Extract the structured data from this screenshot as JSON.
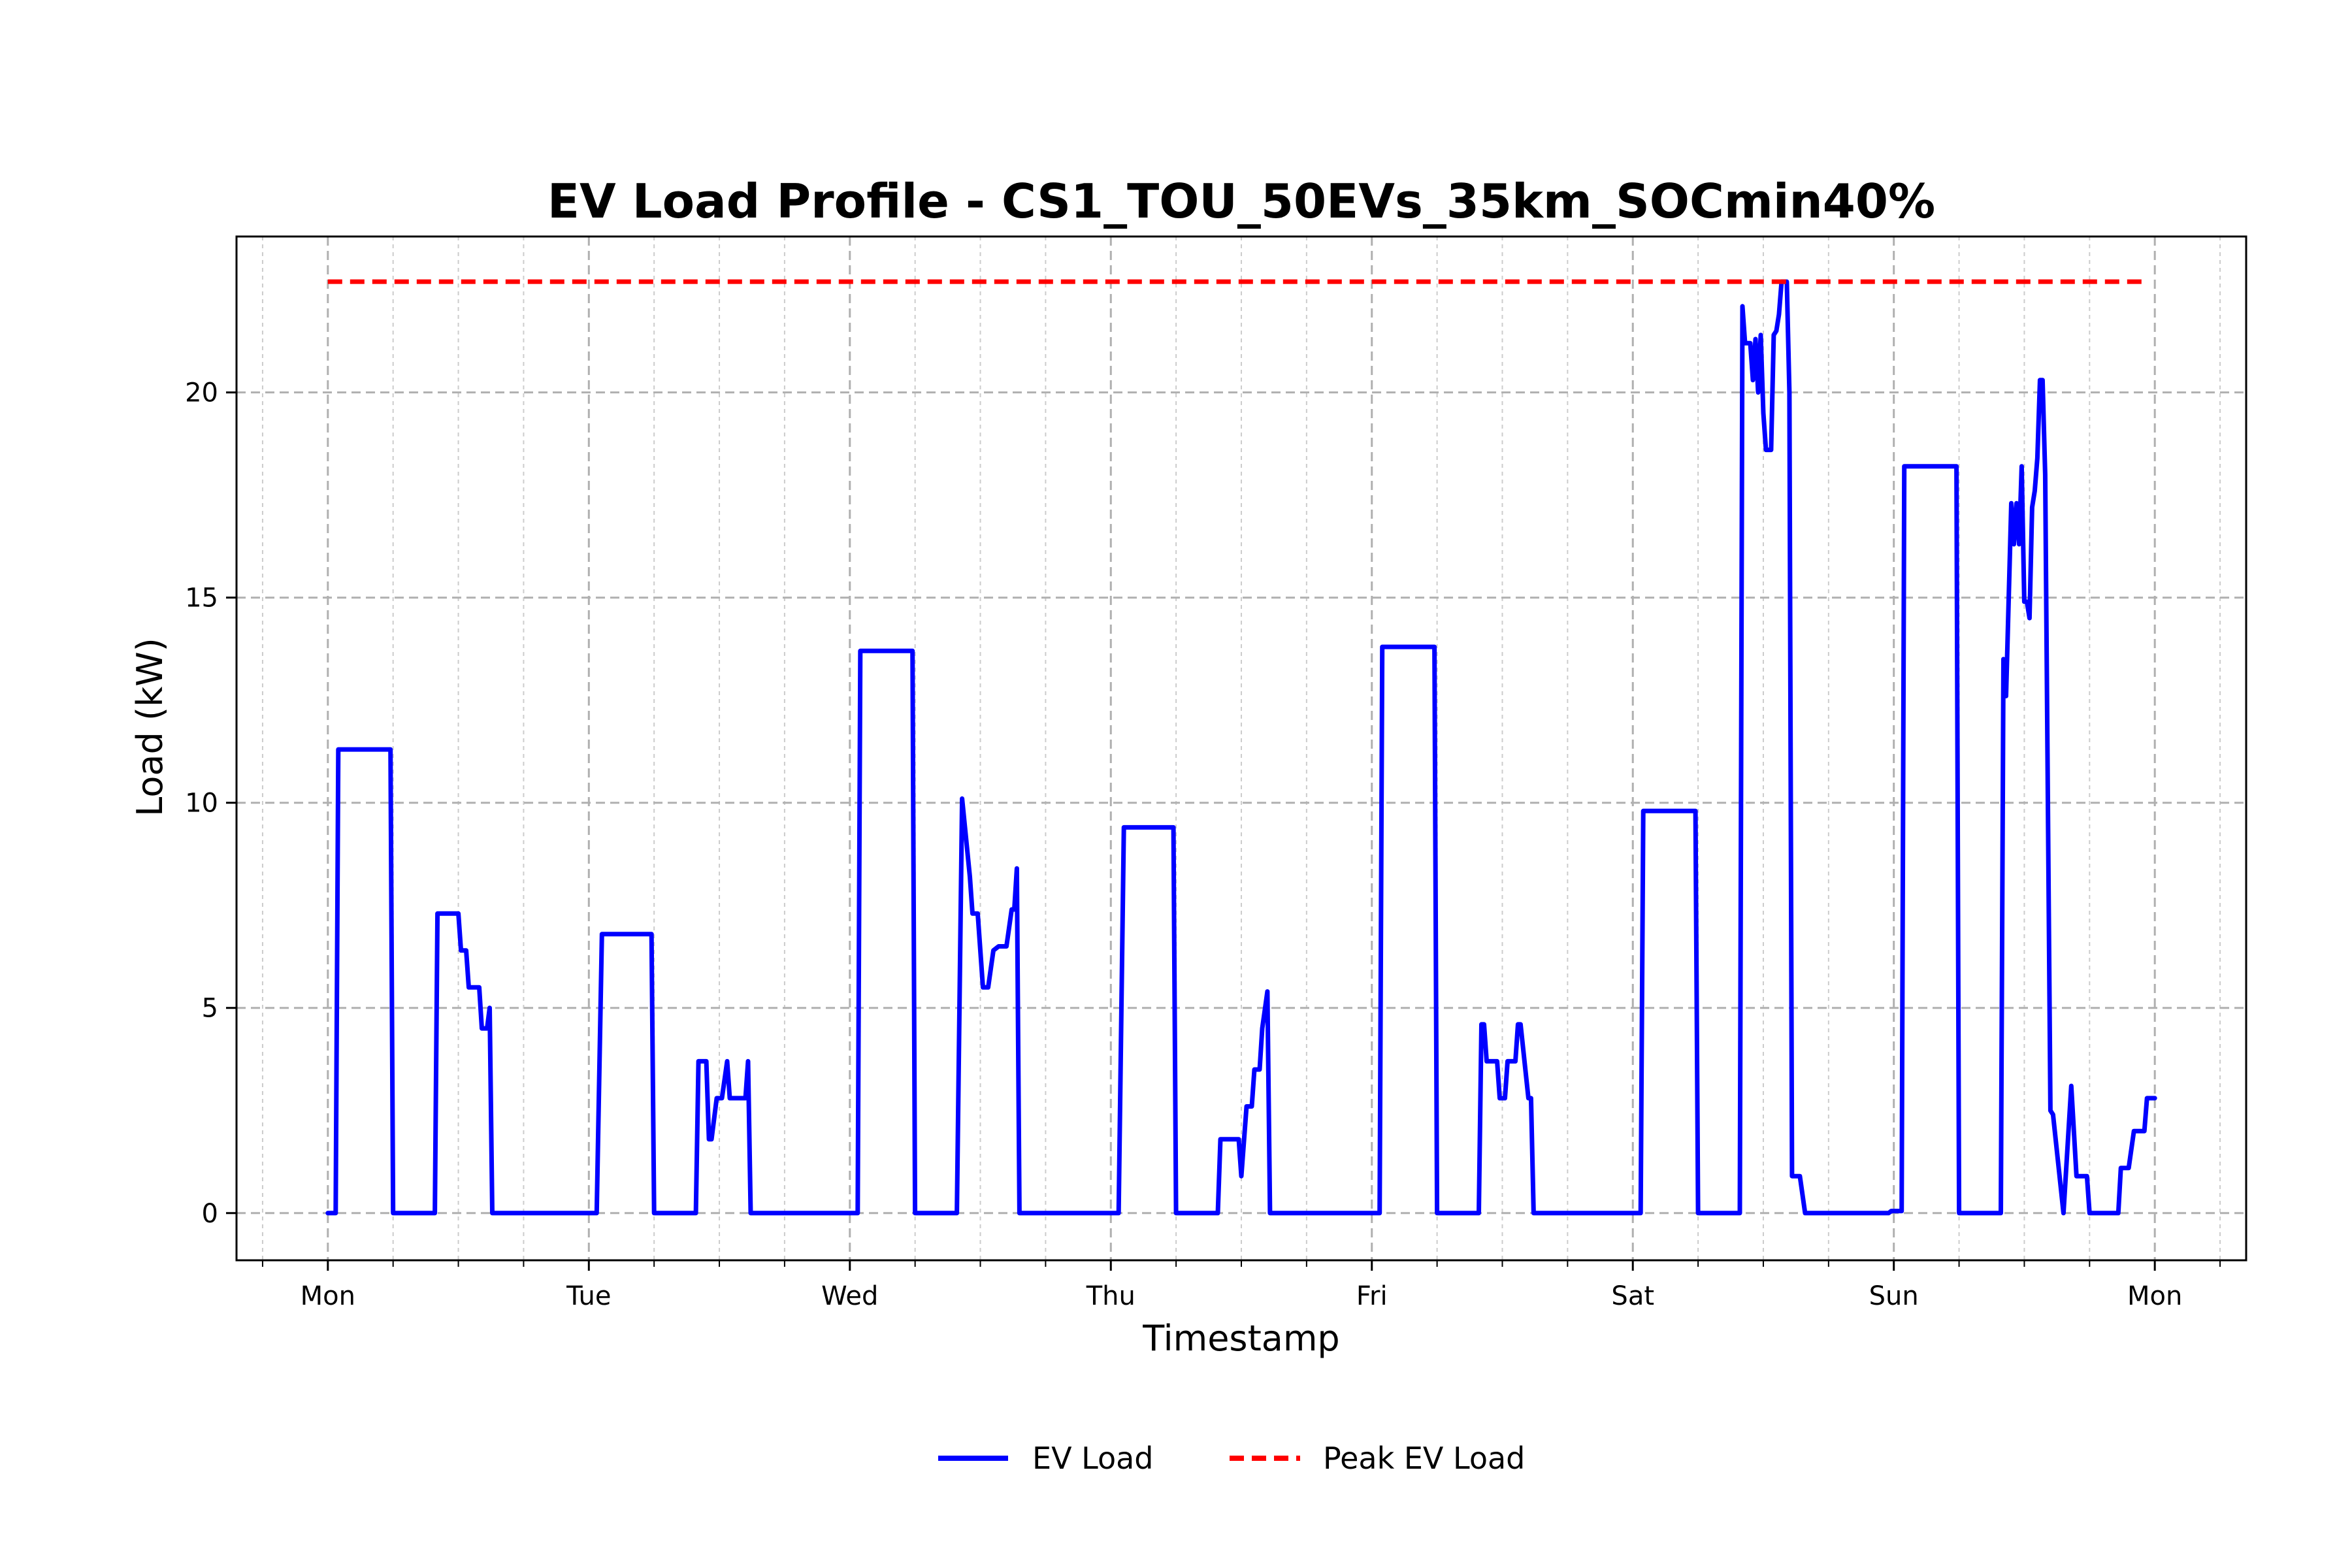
{
  "chart_data": {
    "type": "line",
    "title": "EV Load Profile - CS1_TOU_50EVs_35km_SOCmin40%",
    "xlabel": "Timestamp",
    "ylabel": "Load (kW)",
    "x_unit": "days from Monday 00:00",
    "xlim": [
      -0.35,
      7.35
    ],
    "ylim": [
      -1.15,
      23.8
    ],
    "x_ticks": [
      {
        "value": 0,
        "label": "Mon"
      },
      {
        "value": 1,
        "label": "Tue"
      },
      {
        "value": 2,
        "label": "Wed"
      },
      {
        "value": 3,
        "label": "Thu"
      },
      {
        "value": 4,
        "label": "Fri"
      },
      {
        "value": 5,
        "label": "Sat"
      },
      {
        "value": 6,
        "label": "Sun"
      },
      {
        "value": 7,
        "label": "Mon"
      }
    ],
    "y_ticks": [
      {
        "value": 0,
        "label": "0"
      },
      {
        "value": 5,
        "label": "5"
      },
      {
        "value": 10,
        "label": "10"
      },
      {
        "value": 15,
        "label": "15"
      },
      {
        "value": 20,
        "label": "20"
      }
    ],
    "grid": true,
    "legend_position": "bottom-center",
    "series": [
      {
        "name": "EV Load",
        "color": "#0000ff",
        "style": "solid",
        "points": [
          [
            0,
            0
          ],
          [
            0.03,
            0
          ],
          [
            0.04,
            11.3
          ],
          [
            0.24,
            11.3
          ],
          [
            0.25,
            0
          ],
          [
            0.41,
            0
          ],
          [
            0.42,
            7.3
          ],
          [
            0.5,
            7.3
          ],
          [
            0.51,
            6.4
          ],
          [
            0.53,
            6.4
          ],
          [
            0.54,
            5.5
          ],
          [
            0.58,
            5.5
          ],
          [
            0.59,
            4.5
          ],
          [
            0.61,
            4.5
          ],
          [
            0.62,
            5.0
          ],
          [
            0.63,
            0
          ],
          [
            1.03,
            0
          ],
          [
            1.05,
            6.8
          ],
          [
            1.24,
            6.8
          ],
          [
            1.25,
            0
          ],
          [
            1.41,
            0
          ],
          [
            1.42,
            3.7
          ],
          [
            1.45,
            3.7
          ],
          [
            1.46,
            1.8
          ],
          [
            1.47,
            1.8
          ],
          [
            1.49,
            2.8
          ],
          [
            1.51,
            2.8
          ],
          [
            1.53,
            3.7
          ],
          [
            1.54,
            2.8
          ],
          [
            1.6,
            2.8
          ],
          [
            1.61,
            3.7
          ],
          [
            1.62,
            0
          ],
          [
            2.03,
            0
          ],
          [
            2.04,
            13.7
          ],
          [
            2.24,
            13.7
          ],
          [
            2.25,
            0
          ],
          [
            2.41,
            0
          ],
          [
            2.43,
            10.1
          ],
          [
            2.46,
            8.2
          ],
          [
            2.47,
            7.3
          ],
          [
            2.49,
            7.3
          ],
          [
            2.51,
            5.5
          ],
          [
            2.53,
            5.5
          ],
          [
            2.55,
            6.4
          ],
          [
            2.57,
            6.5
          ],
          [
            2.6,
            6.5
          ],
          [
            2.62,
            7.4
          ],
          [
            2.63,
            7.4
          ],
          [
            2.64,
            8.4
          ],
          [
            2.65,
            0
          ],
          [
            3.03,
            0
          ],
          [
            3.05,
            9.4
          ],
          [
            3.24,
            9.4
          ],
          [
            3.25,
            0
          ],
          [
            3.41,
            0
          ],
          [
            3.42,
            1.8
          ],
          [
            3.49,
            1.8
          ],
          [
            3.5,
            0.9
          ],
          [
            3.52,
            2.6
          ],
          [
            3.54,
            2.6
          ],
          [
            3.55,
            3.5
          ],
          [
            3.57,
            3.5
          ],
          [
            3.58,
            4.5
          ],
          [
            3.6,
            5.4
          ],
          [
            3.61,
            0
          ],
          [
            4.03,
            0
          ],
          [
            4.04,
            13.8
          ],
          [
            4.24,
            13.8
          ],
          [
            4.25,
            0
          ],
          [
            4.41,
            0
          ],
          [
            4.42,
            4.6
          ],
          [
            4.43,
            4.6
          ],
          [
            4.44,
            3.7
          ],
          [
            4.48,
            3.7
          ],
          [
            4.49,
            2.8
          ],
          [
            4.51,
            2.8
          ],
          [
            4.52,
            3.7
          ],
          [
            4.55,
            3.7
          ],
          [
            4.56,
            4.6
          ],
          [
            4.57,
            4.6
          ],
          [
            4.6,
            2.8
          ],
          [
            4.61,
            2.8
          ],
          [
            4.62,
            0
          ],
          [
            5.03,
            0
          ],
          [
            5.04,
            9.8
          ],
          [
            5.24,
            9.8
          ],
          [
            5.25,
            0
          ],
          [
            5.41,
            0
          ],
          [
            5.42,
            22.1
          ],
          [
            5.43,
            21.2
          ],
          [
            5.45,
            21.2
          ],
          [
            5.46,
            20.3
          ],
          [
            5.47,
            21.3
          ],
          [
            5.48,
            20.0
          ],
          [
            5.49,
            21.4
          ],
          [
            5.5,
            19.5
          ],
          [
            5.51,
            18.6
          ],
          [
            5.53,
            18.6
          ],
          [
            5.54,
            21.4
          ],
          [
            5.55,
            21.5
          ],
          [
            5.56,
            21.9
          ],
          [
            5.57,
            22.7
          ],
          [
            5.59,
            22.7
          ],
          [
            5.6,
            20.0
          ],
          [
            5.61,
            0.9
          ],
          [
            5.64,
            0.9
          ],
          [
            5.66,
            0
          ],
          [
            5.98,
            0
          ],
          [
            5.99,
            0.05
          ],
          [
            6.03,
            0.05
          ],
          [
            6.04,
            18.2
          ],
          [
            6.24,
            18.2
          ],
          [
            6.25,
            0
          ],
          [
            6.41,
            0
          ],
          [
            6.42,
            13.5
          ],
          [
            6.43,
            12.6
          ],
          [
            6.45,
            17.3
          ],
          [
            6.46,
            16.3
          ],
          [
            6.47,
            17.3
          ],
          [
            6.48,
            16.3
          ],
          [
            6.49,
            18.2
          ],
          [
            6.5,
            14.9
          ],
          [
            6.51,
            14.9
          ],
          [
            6.52,
            14.5
          ],
          [
            6.53,
            17.2
          ],
          [
            6.54,
            17.6
          ],
          [
            6.55,
            18.4
          ],
          [
            6.56,
            20.3
          ],
          [
            6.57,
            20.3
          ],
          [
            6.58,
            18.0
          ],
          [
            6.6,
            2.5
          ],
          [
            6.61,
            2.4
          ],
          [
            6.65,
            0
          ],
          [
            6.68,
            3.1
          ],
          [
            6.7,
            0.9
          ],
          [
            6.74,
            0.9
          ],
          [
            6.75,
            0
          ],
          [
            6.86,
            0
          ],
          [
            6.87,
            1.1
          ],
          [
            6.9,
            1.1
          ],
          [
            6.92,
            2.0
          ],
          [
            6.96,
            2.0
          ],
          [
            6.97,
            2.8
          ],
          [
            7.0,
            2.8
          ]
        ]
      },
      {
        "name": "Peak EV Load",
        "color": "#ff0000",
        "style": "dashed",
        "points": [
          [
            0,
            22.7
          ],
          [
            6.97,
            22.7
          ]
        ]
      }
    ]
  }
}
